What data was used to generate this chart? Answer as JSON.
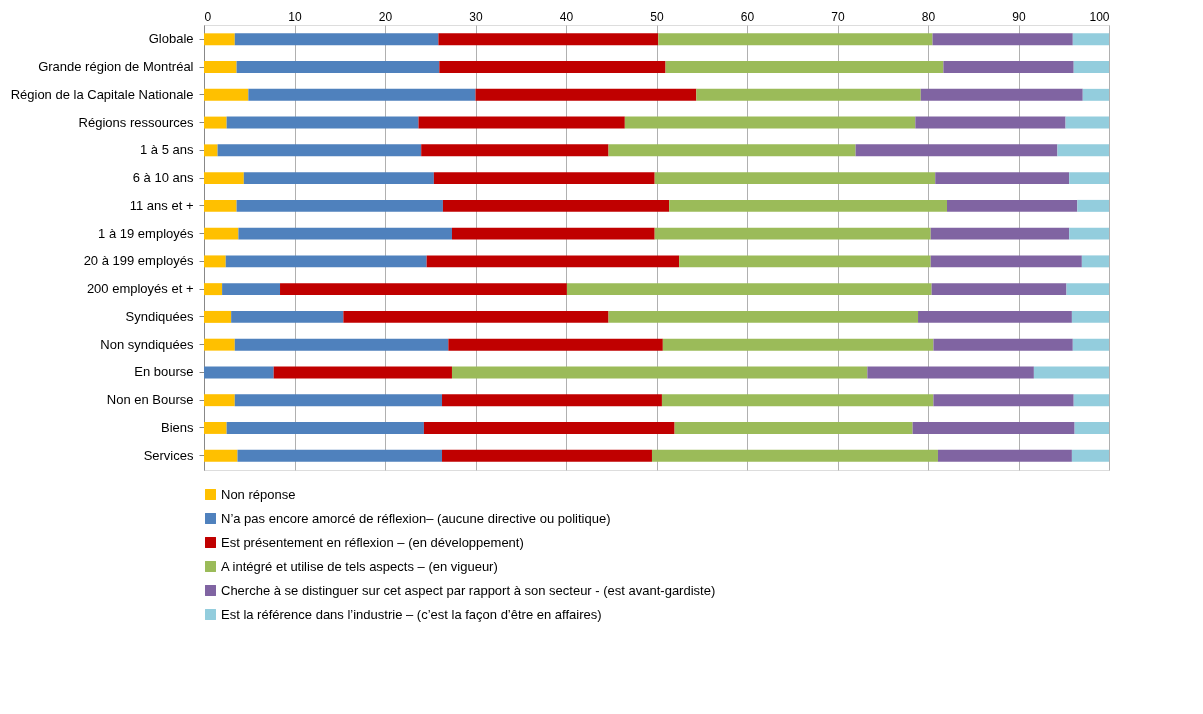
{
  "chart_data": {
    "type": "bar",
    "orientation": "horizontal",
    "stacked": true,
    "categories": [
      "Globale",
      "Grande région de Montréal",
      "Région de la Capitale Nationale",
      "Régions ressources",
      "1 à 5 ans",
      "6 à 10 ans",
      "11 ans et +",
      "1 à 19 employés",
      "20 à 199 employés",
      "200 employés et +",
      "Syndiquées",
      "Non syndiquées",
      "En bourse",
      "Non en Bourse",
      "Biens",
      "Services"
    ],
    "series": [
      {
        "name": "Non réponse",
        "color": "#ffc000",
        "values": [
          3.4,
          3.6,
          4.9,
          2.5,
          1.5,
          4.4,
          3.6,
          3.8,
          2.4,
          2.0,
          3.0,
          3.4,
          0,
          3.4,
          2.5,
          3.7
        ]
      },
      {
        "name": "N’a pas encore amorcé de réflexion– (aucune directive ou politique)",
        "color": "#4f81bd",
        "values": [
          22.5,
          22.4,
          25.1,
          21.2,
          22.5,
          21.0,
          22.8,
          23.6,
          22.2,
          6.4,
          12.4,
          23.6,
          7.7,
          22.9,
          21.8,
          22.6
        ]
      },
      {
        "name": "Est présentement en réflexion – (en développement)",
        "color": "#c00000",
        "values": [
          24.3,
          25.0,
          24.4,
          22.8,
          20.7,
          24.4,
          25.0,
          22.4,
          27.9,
          31.7,
          29.3,
          23.7,
          19.7,
          24.3,
          27.7,
          23.2
        ]
      },
      {
        "name": "A intégré et utilise de tels aspects – (en vigueur)",
        "color": "#9bbb59",
        "values": [
          30.3,
          30.7,
          24.8,
          32.1,
          27.3,
          31.0,
          30.7,
          30.5,
          27.8,
          40.3,
          34.2,
          29.9,
          45.9,
          30.0,
          26.3,
          31.6
        ]
      },
      {
        "name": "Cherche à se distinguer sur cet aspect par rapport à son secteur - (est avant-gardiste)",
        "color": "#8064a2",
        "values": [
          15.5,
          14.4,
          17.9,
          16.6,
          22.3,
          14.8,
          14.4,
          15.3,
          16.7,
          14.9,
          17.0,
          15.4,
          18.4,
          15.5,
          17.9,
          14.8
        ]
      },
      {
        "name": "Est la référence dans l’industrie – (c’est la façon d’être en affaires)",
        "color": "#93cddd",
        "values": [
          4.0,
          3.9,
          2.9,
          4.8,
          5.7,
          4.4,
          3.5,
          4.4,
          3.0,
          4.7,
          4.1,
          4.0,
          8.3,
          3.9,
          3.8,
          4.1
        ]
      }
    ],
    "xlim": [
      0,
      100
    ],
    "xticks": [
      0,
      10,
      20,
      30,
      40,
      50,
      60,
      70,
      80,
      90,
      100
    ],
    "grid": "x",
    "legend": "bottom"
  }
}
